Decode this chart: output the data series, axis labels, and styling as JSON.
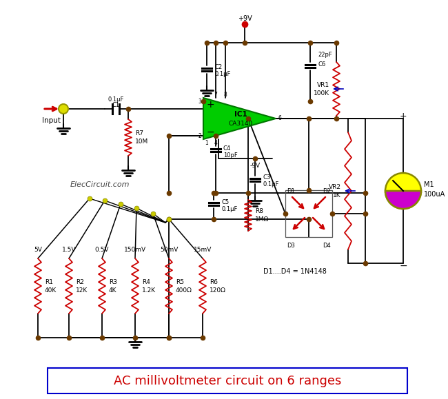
{
  "title": "AC millivoltmeter circuit on 6 ranges",
  "title_fontsize": 13,
  "title_color": "#cc0000",
  "bg_color": "#ffffff",
  "wire_color": "#000000",
  "dot_color": "#6b3a00",
  "resistor_color": "#cc0000",
  "opamp_fill": "#00cc00",
  "opamp_edge": "#007700",
  "watermark": "ElecCircuit.com",
  "ranges": [
    "5V",
    "1.5V",
    "0.5V",
    "150mV",
    "50mV",
    "15mV"
  ],
  "res_labels": [
    "R1",
    "R2",
    "R3",
    "R4",
    "R5",
    "R6"
  ],
  "res_values": [
    "40K",
    "12K",
    "4K",
    "1.2K",
    "400Ω",
    "120Ω"
  ]
}
